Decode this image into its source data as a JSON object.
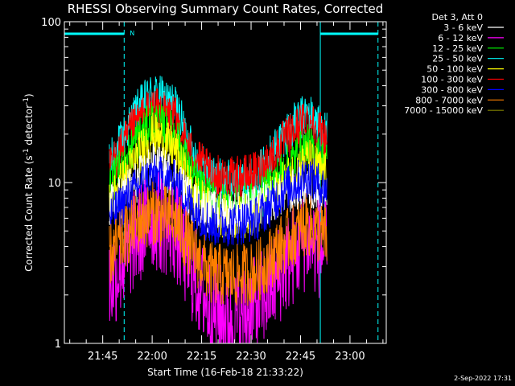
{
  "colors": {
    "background": "#000000",
    "foreground": "#ffffff",
    "orbit": "#00ffff"
  },
  "chart_data": {
    "type": "line",
    "title": "RHESSI Observing Summary Count Rates, Corrected",
    "xlabel": "Start Time (16-Feb-18 21:33:22)",
    "ylabel": "Corrected Count Rate (s",
    "ylabel_sup1": "-1",
    "ylabel_mid": " detector",
    "ylabel_sup2": "-1",
    "ylabel_end": ")",
    "yscale": "log",
    "ylim": [
      1,
      100
    ],
    "xlim": [
      "21:33:22",
      "23:11:00"
    ],
    "x_ticks": [
      "21:45",
      "22:00",
      "22:15",
      "22:30",
      "22:45",
      "23:00"
    ],
    "y_ticks": [
      "1",
      "10",
      "100"
    ],
    "legend_title": "Det 3, Att 0",
    "legend_position": "top-right",
    "date_stamp": "2-Sep-2022 17:31",
    "orbit_marks": {
      "night_start": "21:33:22",
      "saa_start": "21:51:30",
      "night_end": "22:51:00",
      "saa_end": "23:08:30",
      "flag": "N"
    },
    "series": [
      {
        "name": "3 - 6 keV",
        "color": "#ffffff",
        "values": [
          [
            "21:47",
            7
          ],
          [
            "21:55",
            10
          ],
          [
            "22:00",
            13
          ],
          [
            "22:07",
            11
          ],
          [
            "22:12",
            7.5
          ],
          [
            "22:18",
            6.5
          ],
          [
            "22:25",
            6.5
          ],
          [
            "22:32",
            7
          ],
          [
            "22:40",
            8.5
          ],
          [
            "22:47",
            9.5
          ],
          [
            "22:53",
            8
          ]
        ]
      },
      {
        "name": "6 - 12 keV",
        "color": "#ff00ff",
        "values": [
          [
            "21:47",
            2.3
          ],
          [
            "21:55",
            4.5
          ],
          [
            "22:00",
            6
          ],
          [
            "22:07",
            5
          ],
          [
            "22:12",
            2.8
          ],
          [
            "22:18",
            1.6
          ],
          [
            "22:25",
            1.4
          ],
          [
            "22:32",
            1.7
          ],
          [
            "22:40",
            3
          ],
          [
            "22:47",
            4.5
          ],
          [
            "22:53",
            3.6
          ]
        ]
      },
      {
        "name": "12 - 25 keV",
        "color": "#00ff00",
        "values": [
          [
            "21:47",
            9
          ],
          [
            "21:55",
            18
          ],
          [
            "22:00",
            24
          ],
          [
            "22:07",
            20
          ],
          [
            "22:12",
            11
          ],
          [
            "22:18",
            7.5
          ],
          [
            "22:25",
            7
          ],
          [
            "22:32",
            7.5
          ],
          [
            "22:40",
            12
          ],
          [
            "22:47",
            17
          ],
          [
            "22:53",
            13
          ]
        ]
      },
      {
        "name": "25 - 50 keV",
        "color": "#00ffff",
        "values": [
          [
            "21:47",
            13
          ],
          [
            "21:55",
            27
          ],
          [
            "22:00",
            36
          ],
          [
            "22:07",
            30
          ],
          [
            "22:12",
            16
          ],
          [
            "22:18",
            10.5
          ],
          [
            "22:25",
            10
          ],
          [
            "22:32",
            11
          ],
          [
            "22:40",
            20
          ],
          [
            "22:47",
            27
          ],
          [
            "22:53",
            20
          ]
        ]
      },
      {
        "name": "50 - 100 keV",
        "color": "#ffff00",
        "values": [
          [
            "21:47",
            7.5
          ],
          [
            "21:55",
            14
          ],
          [
            "22:00",
            20
          ],
          [
            "22:07",
            16
          ],
          [
            "22:12",
            9
          ],
          [
            "22:18",
            6.5
          ],
          [
            "22:25",
            6
          ],
          [
            "22:32",
            6.5
          ],
          [
            "22:40",
            10
          ],
          [
            "22:47",
            14
          ],
          [
            "22:53",
            11
          ]
        ]
      },
      {
        "name": "100 - 300 keV",
        "color": "#ff0000",
        "values": [
          [
            "21:47",
            12
          ],
          [
            "21:55",
            23
          ],
          [
            "22:00",
            29
          ],
          [
            "22:07",
            25
          ],
          [
            "22:12",
            15
          ],
          [
            "22:18",
            11
          ],
          [
            "22:25",
            10.5
          ],
          [
            "22:32",
            11.5
          ],
          [
            "22:40",
            18
          ],
          [
            "22:47",
            25
          ],
          [
            "22:53",
            19
          ]
        ]
      },
      {
        "name": "300 - 800 keV",
        "color": "#0000ff",
        "values": [
          [
            "21:47",
            6
          ],
          [
            "21:55",
            9
          ],
          [
            "22:00",
            11
          ],
          [
            "22:07",
            10
          ],
          [
            "22:12",
            7
          ],
          [
            "22:18",
            5.5
          ],
          [
            "22:25",
            5.5
          ],
          [
            "22:32",
            6
          ],
          [
            "22:40",
            9
          ],
          [
            "22:47",
            11
          ],
          [
            "22:53",
            9
          ]
        ]
      },
      {
        "name": "800 - 7000 keV",
        "color": "#ff8000",
        "values": [
          [
            "21:47",
            3.5
          ],
          [
            "21:55",
            5.5
          ],
          [
            "22:00",
            6.5
          ],
          [
            "22:07",
            5.8
          ],
          [
            "22:12",
            3.8
          ],
          [
            "22:18",
            2.7
          ],
          [
            "22:25",
            2.6
          ],
          [
            "22:32",
            2.8
          ],
          [
            "22:40",
            4.2
          ],
          [
            "22:47",
            5.5
          ],
          [
            "22:53",
            4.5
          ]
        ]
      },
      {
        "name": "7000 - 15000 keV",
        "color": "#808000",
        "values": []
      }
    ]
  }
}
